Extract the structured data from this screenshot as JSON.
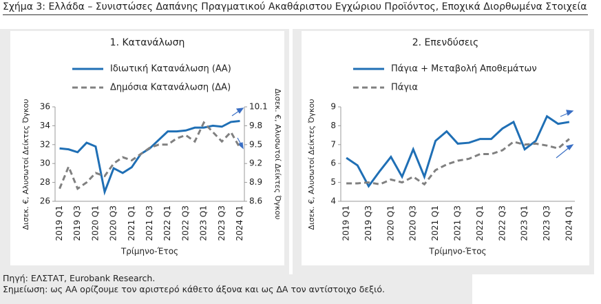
{
  "header": {
    "title": "Σχήμα 3: Ελλάδα – Συνιστώσες Δαπάνης Πραγματικού Ακαθάριστου Εγχώριου Προϊόντος, Εποχικά Διορθωμένα Στοιχεία"
  },
  "chart_data": [
    {
      "type": "line",
      "title": "1. Κατανάλωση",
      "categories": [
        "2019 Q1",
        null,
        "2019 Q3",
        null,
        "2020 Q1",
        null,
        "2020 Q3",
        null,
        "2021 Q1",
        null,
        "2021 Q3",
        null,
        "2022 Q1",
        null,
        "2022 Q3",
        null,
        "2023 Q1",
        null,
        "2023 Q3",
        null,
        "2024 Q1"
      ],
      "x_label": "Τρίμηνο-Έτος",
      "y_label": "Δισεκ. €, Αλυσωτοί Δείκτες Όγκου",
      "y2_label": "Δισεκ. €, Αλυσωτοί Δείκτες Όγκου",
      "ylim": [
        26,
        36
      ],
      "yticks": [
        26,
        28,
        30,
        32,
        34,
        36
      ],
      "y2lim": [
        8.6,
        10.1
      ],
      "y2ticks": [
        8.6,
        8.9,
        9.2,
        9.5,
        9.8,
        10.1
      ],
      "series": [
        {
          "name": "Ιδιωτική Κατανάλωση (ΑΑ)",
          "color": "#1f6fb5",
          "dash": false,
          "values": [
            31.6,
            31.5,
            31.2,
            32.2,
            31.8,
            27.0,
            29.5,
            29.0,
            29.6,
            31.0,
            31.6,
            32.5,
            33.4,
            33.4,
            33.5,
            33.8,
            33.8,
            34.0,
            33.9,
            34.4,
            34.5
          ]
        },
        {
          "name": "Δημόσια Κατανάλωση (ΔΑ)",
          "color": "#808080",
          "dash": true,
          "axis": "y2",
          "values": [
            8.8,
            9.15,
            8.8,
            8.9,
            9.05,
            9.0,
            9.2,
            9.3,
            9.25,
            9.35,
            9.45,
            9.5,
            9.5,
            9.6,
            9.65,
            9.55,
            9.85,
            9.7,
            9.55,
            9.7,
            9.45
          ]
        }
      ]
    },
    {
      "type": "line",
      "title": "2. Επενδύσεις",
      "categories": [
        "2019 Q1",
        null,
        "2019 Q3",
        null,
        "2020 Q1",
        null,
        "2020 Q3",
        null,
        "2021 Q1",
        null,
        "2021 Q3",
        null,
        "2022 Q1",
        null,
        "2022 Q3",
        null,
        "2023 Q1",
        null,
        "2023 Q3",
        null,
        "2024 Q1"
      ],
      "x_label": "Τρίμηνο-Έτος",
      "y_label": "Δισεκ. €, Αλυσωτοί Δείκτες Όγκου",
      "ylim": [
        4,
        9
      ],
      "yticks": [
        4,
        5,
        6,
        7,
        8,
        9
      ],
      "series": [
        {
          "name": "Πάγια + Μεταβολή Αποθεμάτων",
          "color": "#1f6fb5",
          "dash": false,
          "values": [
            6.3,
            5.9,
            4.8,
            5.6,
            6.35,
            5.3,
            6.75,
            5.3,
            7.2,
            7.7,
            7.05,
            7.1,
            7.3,
            7.3,
            7.85,
            8.2,
            6.75,
            7.2,
            8.5,
            8.1,
            8.2
          ]
        },
        {
          "name": "Πάγια",
          "color": "#808080",
          "dash": true,
          "values": [
            4.95,
            4.95,
            5.0,
            4.9,
            5.15,
            5.0,
            5.3,
            4.9,
            5.65,
            5.95,
            6.15,
            6.25,
            6.5,
            6.5,
            6.7,
            7.15,
            7.0,
            7.05,
            6.95,
            6.8,
            7.3
          ]
        }
      ]
    }
  ],
  "footer": {
    "source": "Πηγή: ΕΛΣΤΑΤ, Eurobank Research.",
    "note": "Σημείωση: ως ΑΑ ορίζουμε τον αριστερό κάθετο άξονα και ως ΔΑ τον αντίστοιχο δεξιό."
  }
}
